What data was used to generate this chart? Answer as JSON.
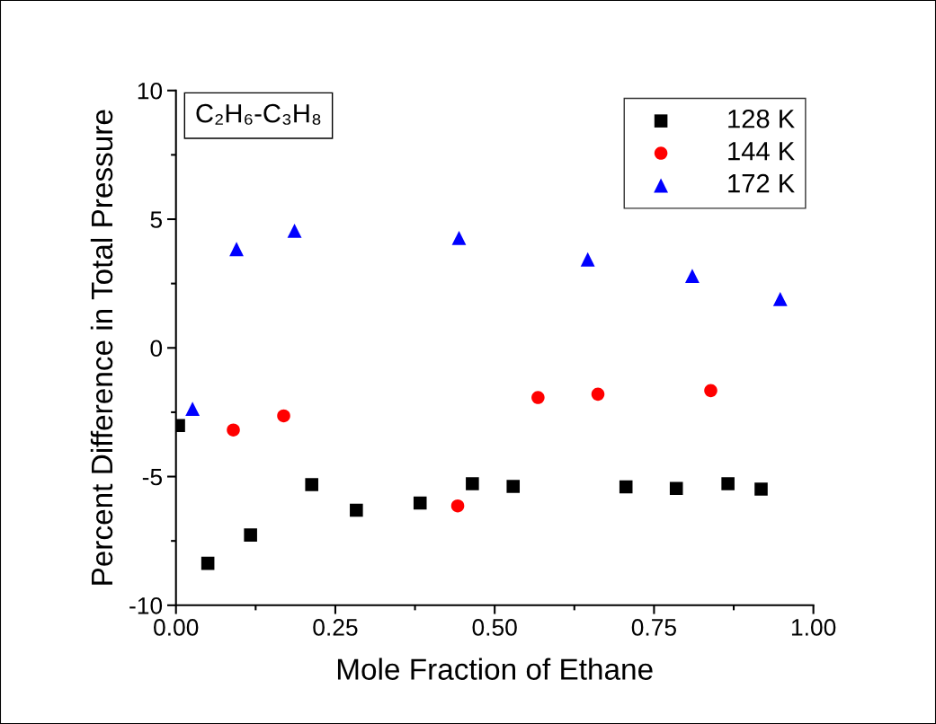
{
  "chart_data": {
    "type": "scatter",
    "xlabel": "Mole Fraction of Ethane",
    "ylabel": "Percent Difference in Total Pressure",
    "annotations": [
      "C₂H₆-C₃H₈"
    ],
    "xlim": [
      0,
      1
    ],
    "xticks": [
      {
        "value": 0,
        "label": "0.00"
      },
      {
        "value": 0.25,
        "label": "0.25"
      },
      {
        "value": 0.5,
        "label": "0.50"
      },
      {
        "value": 0.75,
        "label": "0.75"
      },
      {
        "value": 1,
        "label": "1.00"
      }
    ],
    "ylim": [
      -10,
      10
    ],
    "yticks": [
      -10,
      -5,
      0,
      5,
      10
    ],
    "grid": false,
    "legend": "top right",
    "series": [
      {
        "name": "128 K",
        "color": "#000000",
        "marker": "square",
        "x": [
          0.004,
          0.05,
          0.117,
          0.213,
          0.283,
          0.383,
          0.465,
          0.529,
          0.706,
          0.785,
          0.866,
          0.918
        ],
        "values": [
          -3.02,
          -8.37,
          -7.27,
          -5.31,
          -6.31,
          -6.03,
          -5.28,
          -5.38,
          -5.4,
          -5.46,
          -5.28,
          -5.49
        ]
      },
      {
        "name": "144 K",
        "color": "#ff0000",
        "marker": "circle",
        "x": [
          0.09,
          0.169,
          0.442,
          0.568,
          0.662,
          0.839
        ],
        "values": [
          -3.19,
          -2.64,
          -6.14,
          -1.93,
          -1.8,
          -1.66
        ]
      },
      {
        "name": "172 K",
        "color": "#0000ff",
        "marker": "triangle",
        "x": [
          0.026,
          0.095,
          0.186,
          0.444,
          0.646,
          0.81,
          0.948
        ],
        "values": [
          -2.37,
          3.84,
          4.55,
          4.27,
          3.44,
          2.8,
          1.9
        ]
      }
    ]
  }
}
